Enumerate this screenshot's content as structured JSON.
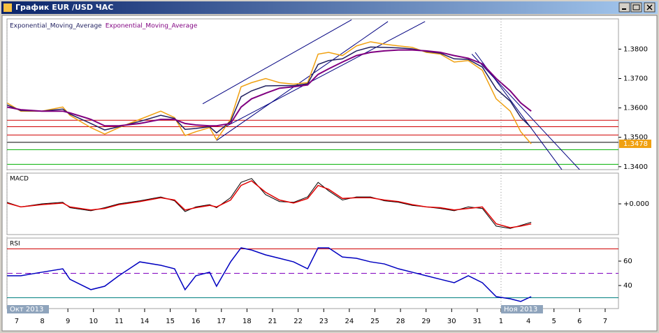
{
  "window_title": "График EUR /USD ЧАС",
  "chart_data": [
    {
      "type": "line",
      "x": [
        -0.38,
        0.16,
        0.98,
        1.8,
        2.08,
        2.9,
        3.44,
        3.99,
        4.81,
        5.63,
        6.17,
        6.58,
        7.0,
        7.54,
        7.81,
        8.36,
        8.77,
        9.18,
        9.73,
        10.27,
        10.82,
        11.37,
        11.78,
        12.19,
        12.73,
        13.28,
        13.83,
        14.37,
        14.92,
        15.46,
        16.01,
        16.56,
        17.1,
        17.65,
        18.2,
        18.74,
        19.29,
        19.7,
        20.11
      ],
      "series": [
        {
          "color": "#f0a010",
          "values": [
            1.3617,
            1.3589,
            1.3589,
            1.3603,
            1.3575,
            1.3533,
            1.3511,
            1.3533,
            1.3561,
            1.3589,
            1.3567,
            1.3506,
            1.3519,
            1.3533,
            1.3492,
            1.3561,
            1.3672,
            1.3686,
            1.37,
            1.3686,
            1.3681,
            1.3686,
            1.3783,
            1.3789,
            1.3778,
            1.3811,
            1.3825,
            1.3817,
            1.3811,
            1.3806,
            1.3789,
            1.3783,
            1.3756,
            1.3761,
            1.3728,
            1.3631,
            1.3589,
            1.3519,
            1.3478
          ]
        },
        {
          "name": "Exponential_Moving_Average",
          "color": "#202060",
          "values": [
            1.361,
            1.3591,
            1.3589,
            1.3596,
            1.3579,
            1.3547,
            1.3525,
            1.3536,
            1.3554,
            1.3575,
            1.3564,
            1.3527,
            1.353,
            1.3536,
            1.3515,
            1.3554,
            1.3638,
            1.3658,
            1.3675,
            1.3676,
            1.3676,
            1.3682,
            1.3748,
            1.3761,
            1.3767,
            1.3794,
            1.3807,
            1.3806,
            1.3804,
            1.3801,
            1.3792,
            1.3786,
            1.3767,
            1.3765,
            1.3739,
            1.3665,
            1.3623,
            1.3568,
            1.3533
          ]
        },
        {
          "name": "Exponential_Moving_Average",
          "color": "#800080",
          "values": [
            1.3603,
            1.3594,
            1.3589,
            1.3589,
            1.3583,
            1.3561,
            1.3539,
            1.3539,
            1.3547,
            1.3561,
            1.3561,
            1.3547,
            1.3542,
            1.3539,
            1.3539,
            1.3547,
            1.3603,
            1.3631,
            1.365,
            1.3667,
            1.3672,
            1.3678,
            1.3714,
            1.3733,
            1.3756,
            1.3778,
            1.3789,
            1.3794,
            1.3797,
            1.3797,
            1.3794,
            1.3789,
            1.3778,
            1.3769,
            1.375,
            1.37,
            1.3658,
            1.3617,
            1.3589
          ]
        }
      ],
      "xlim": [
        -0.38,
        23.52
      ],
      "ylim": [
        1.339,
        1.3903
      ],
      "yticks": [
        {
          "value": 1.38,
          "label": "1.3800"
        },
        {
          "value": 1.37,
          "label": "1.3700"
        },
        {
          "value": 1.36,
          "label": "1.3600"
        },
        {
          "value": 1.35,
          "label": "1.3500"
        },
        {
          "value": 1.34,
          "label": "1.3400"
        }
      ],
      "hlines": [
        {
          "value": 1.3558,
          "color": "#d00000"
        },
        {
          "value": 1.3536,
          "color": "#d00000"
        },
        {
          "value": 1.3508,
          "color": "#d00000"
        },
        {
          "value": 1.3483,
          "color": "#000000"
        },
        {
          "value": 1.3458,
          "color": "#00b000"
        },
        {
          "value": 1.3408,
          "color": "#00b000"
        }
      ],
      "trend_lines": [
        {
          "x": [
            7.27,
            13.09
          ],
          "y": [
            1.3614,
            1.39
          ]
        },
        {
          "x": [
            7.81,
            14.51
          ],
          "y": [
            1.3489,
            1.3894
          ]
        },
        {
          "x": [
            8.09,
            15.96
          ],
          "y": [
            1.3533,
            1.3894
          ]
        },
        {
          "x": [
            17.92,
            22.02
          ],
          "y": [
            1.3789,
            1.3306
          ]
        },
        {
          "x": [
            17.79,
            22.9
          ],
          "y": [
            1.3783,
            1.3306
          ]
        }
      ],
      "last_price": 1.3478,
      "last_price_color": "#f0a010"
    },
    {
      "type": "line",
      "title": "MACD",
      "x": [
        -0.38,
        0.16,
        0.98,
        1.8,
        2.08,
        2.9,
        3.44,
        3.99,
        4.81,
        5.63,
        6.17,
        6.58,
        7.0,
        7.54,
        7.81,
        8.36,
        8.77,
        9.18,
        9.73,
        10.27,
        10.82,
        11.37,
        11.78,
        12.19,
        12.73,
        13.28,
        13.83,
        14.37,
        14.92,
        15.46,
        16.01,
        16.56,
        17.1,
        17.65,
        18.2,
        18.74,
        19.29,
        19.7,
        20.11
      ],
      "series": [
        {
          "color": "#000000",
          "values": [
            0.0002,
            -0.0004,
            0.0,
            0.0002,
            -0.0005,
            -0.0009,
            -0.0005,
            0.0,
            0.0004,
            0.0009,
            0.0004,
            -0.001,
            -0.0004,
            -0.0001,
            -0.0005,
            0.0008,
            0.0028,
            0.0033,
            0.0012,
            0.0003,
            0.0002,
            0.0009,
            0.0028,
            0.0017,
            0.0005,
            0.0009,
            0.0009,
            0.0004,
            0.0002,
            -0.0002,
            -0.0004,
            -0.0006,
            -0.0009,
            -0.0004,
            -0.0006,
            -0.0029,
            -0.0032,
            -0.0028,
            -0.0024
          ]
        },
        {
          "color": "#e00000",
          "values": [
            0.0001,
            -0.0004,
            -0.0001,
            0.0001,
            -0.0004,
            -0.0008,
            -0.0006,
            -0.0001,
            0.0003,
            0.0008,
            0.0005,
            -0.0008,
            -0.0005,
            -0.0002,
            -0.0004,
            0.0005,
            0.0024,
            0.003,
            0.0015,
            0.0005,
            0.0001,
            0.0007,
            0.0024,
            0.0019,
            0.0007,
            0.0008,
            0.0008,
            0.0005,
            0.0003,
            -0.0001,
            -0.0004,
            -0.0005,
            -0.0008,
            -0.0006,
            -0.0004,
            -0.0026,
            -0.0031,
            -0.0029,
            -0.0026
          ]
        }
      ],
      "xlim": [
        -0.38,
        23.52
      ],
      "ylim": [
        -0.004,
        0.004
      ],
      "yticks": [
        {
          "value": 0,
          "label": "+0.000"
        }
      ]
    },
    {
      "type": "line",
      "title": "RSI",
      "x": [
        -0.38,
        0.16,
        0.98,
        1.8,
        2.08,
        2.9,
        3.44,
        3.99,
        4.81,
        5.63,
        6.17,
        6.58,
        7.0,
        7.54,
        7.81,
        8.36,
        8.77,
        9.18,
        9.73,
        10.27,
        10.82,
        11.37,
        11.78,
        12.19,
        12.73,
        13.28,
        13.83,
        14.37,
        14.92,
        15.46,
        16.01,
        16.56,
        17.1,
        17.65,
        18.2,
        18.74,
        19.29,
        19.7,
        20.11
      ],
      "series": [
        {
          "color": "#0000c0",
          "values": [
            48.0,
            48.0,
            50.9,
            53.7,
            45.1,
            36.6,
            39.4,
            48.0,
            59.4,
            56.6,
            53.7,
            36.6,
            48.0,
            50.9,
            39.4,
            59.4,
            70.9,
            69.1,
            65.1,
            62.3,
            59.4,
            53.7,
            70.9,
            70.9,
            63.4,
            62.3,
            59.4,
            57.7,
            53.7,
            50.9,
            48.0,
            45.1,
            42.3,
            48.0,
            42.3,
            30.9,
            29.1,
            26.9,
            30.9
          ]
        }
      ],
      "xlim": [
        -0.38,
        23.52
      ],
      "ylim": [
        21.1,
        78.9
      ],
      "yticks": [
        60,
        40
      ],
      "hlines": [
        {
          "value": 70,
          "color": "#d00000"
        },
        {
          "value": 50,
          "color": "#8000c0",
          "dashed": true
        },
        {
          "value": 30,
          "color": "#008080"
        }
      ],
      "xticks": [
        {
          "value": 0,
          "label": "7"
        },
        {
          "value": 1,
          "label": "8"
        },
        {
          "value": 2,
          "label": "9"
        },
        {
          "value": 3,
          "label": "10"
        },
        {
          "value": 4,
          "label": "11"
        },
        {
          "value": 5,
          "label": "14"
        },
        {
          "value": 6,
          "label": "15"
        },
        {
          "value": 7,
          "label": "16"
        },
        {
          "value": 8,
          "label": "17"
        },
        {
          "value": 9,
          "label": "18"
        },
        {
          "value": 10,
          "label": "21"
        },
        {
          "value": 11,
          "label": "22"
        },
        {
          "value": 12,
          "label": "23"
        },
        {
          "value": 13,
          "label": "24"
        },
        {
          "value": 14,
          "label": "25"
        },
        {
          "value": 15,
          "label": "28"
        },
        {
          "value": 16,
          "label": "29"
        },
        {
          "value": 17,
          "label": "30"
        },
        {
          "value": 18,
          "label": "31"
        },
        {
          "value": 18.93,
          "label": "1"
        },
        {
          "value": 20,
          "label": "4"
        },
        {
          "value": 21,
          "label": "5"
        },
        {
          "value": 22,
          "label": "6"
        },
        {
          "value": 23,
          "label": "7"
        }
      ],
      "x_annotations": [
        {
          "value": -0.38,
          "label": "Окт 2013"
        },
        {
          "value": 18.93,
          "label": "Ноя 2013"
        }
      ]
    }
  ]
}
